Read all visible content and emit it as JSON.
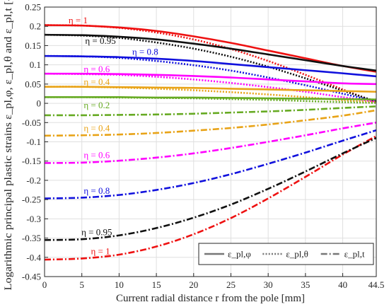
{
  "chart_data": {
    "type": "line",
    "xlabel": "Current radial distance r from the pole [mm]",
    "ylabel": "Logarithmic principal plastic strains ε_pl,φ, ε_pl,θ and ε_pl,t [-]",
    "xlim": [
      0,
      44.5
    ],
    "ylim": [
      -0.45,
      0.25
    ],
    "x_ticks": [
      "0",
      "5",
      "10",
      "15",
      "20",
      "25",
      "30",
      "35",
      "40",
      "44.5"
    ],
    "y_ticks": [
      "0.25",
      "0.2",
      "0.15",
      "0.1",
      "0.05",
      "0",
      "-0.05",
      "-0.1",
      "-0.15",
      "-0.2",
      "-0.25",
      "-0.3",
      "-0.35",
      "-0.4",
      "-0.45"
    ],
    "grid": true,
    "legend_position": "bottom-right",
    "legend": [
      {
        "label": "ε_pl,φ",
        "style": "solid"
      },
      {
        "label": "ε_pl,θ",
        "style": "dotted"
      },
      {
        "label": "ε_pl,t",
        "style": "dash-dot"
      }
    ],
    "x": [
      0,
      5,
      10,
      15,
      20,
      25,
      30,
      35,
      40,
      44.5
    ],
    "series": [
      {
        "eta": "1",
        "color": "#ee1111",
        "strain": "phi",
        "values": [
          0.203,
          0.202,
          0.197,
          0.188,
          0.174,
          0.157,
          0.137,
          0.117,
          0.097,
          0.082
        ]
      },
      {
        "eta": "1",
        "color": "#ee1111",
        "strain": "theta",
        "values": [
          0.203,
          0.202,
          0.196,
          0.184,
          0.166,
          0.141,
          0.11,
          0.074,
          0.036,
          0.003
        ]
      },
      {
        "eta": "1",
        "color": "#ee1111",
        "strain": "t",
        "values": [
          -0.406,
          -0.403,
          -0.393,
          -0.372,
          -0.34,
          -0.298,
          -0.247,
          -0.191,
          -0.133,
          -0.085
        ]
      },
      {
        "eta": "0.95",
        "color": "#111111",
        "strain": "phi",
        "values": [
          0.178,
          0.177,
          0.173,
          0.166,
          0.155,
          0.142,
          0.127,
          0.112,
          0.097,
          0.085
        ]
      },
      {
        "eta": "0.95",
        "color": "#111111",
        "strain": "theta",
        "values": [
          0.178,
          0.176,
          0.17,
          0.158,
          0.142,
          0.121,
          0.095,
          0.065,
          0.033,
          0.005
        ]
      },
      {
        "eta": "0.95",
        "color": "#111111",
        "strain": "t",
        "values": [
          -0.355,
          -0.353,
          -0.343,
          -0.324,
          -0.297,
          -0.263,
          -0.222,
          -0.177,
          -0.13,
          -0.09
        ]
      },
      {
        "eta": "0.8",
        "color": "#1111dd",
        "strain": "phi",
        "values": [
          0.123,
          0.122,
          0.12,
          0.116,
          0.11,
          0.102,
          0.094,
          0.086,
          0.078,
          0.07
        ]
      },
      {
        "eta": "0.8",
        "color": "#1111dd",
        "strain": "theta",
        "values": [
          0.123,
          0.122,
          0.118,
          0.11,
          0.099,
          0.085,
          0.067,
          0.047,
          0.025,
          0.005
        ]
      },
      {
        "eta": "0.8",
        "color": "#1111dd",
        "strain": "t",
        "values": [
          -0.247,
          -0.245,
          -0.238,
          -0.225,
          -0.207,
          -0.184,
          -0.157,
          -0.128,
          -0.097,
          -0.07
        ]
      },
      {
        "eta": "0.6",
        "color": "#ff00ff",
        "strain": "phi",
        "values": [
          0.077,
          0.077,
          0.076,
          0.074,
          0.071,
          0.067,
          0.062,
          0.057,
          0.052,
          0.05
        ]
      },
      {
        "eta": "0.6",
        "color": "#ff00ff",
        "strain": "theta",
        "values": [
          0.077,
          0.076,
          0.074,
          0.069,
          0.062,
          0.053,
          0.042,
          0.03,
          0.016,
          0.004
        ]
      },
      {
        "eta": "0.6",
        "color": "#ff00ff",
        "strain": "t",
        "values": [
          -0.155,
          -0.154,
          -0.149,
          -0.141,
          -0.13,
          -0.116,
          -0.1,
          -0.083,
          -0.065,
          -0.05
        ]
      },
      {
        "eta": "0.4",
        "color": "#e8a317",
        "strain": "phi",
        "values": [
          0.043,
          0.043,
          0.042,
          0.041,
          0.04,
          0.038,
          0.036,
          0.034,
          0.032,
          0.03
        ]
      },
      {
        "eta": "0.4",
        "color": "#e8a317",
        "strain": "theta",
        "values": [
          0.043,
          0.043,
          0.041,
          0.038,
          0.034,
          0.029,
          0.023,
          0.016,
          0.008,
          0.003
        ]
      },
      {
        "eta": "0.4",
        "color": "#e8a317",
        "strain": "t",
        "values": [
          -0.084,
          -0.083,
          -0.081,
          -0.077,
          -0.071,
          -0.064,
          -0.055,
          -0.044,
          -0.032,
          -0.018
        ]
      },
      {
        "eta": "0.2",
        "color": "#66aa22",
        "strain": "phi",
        "values": [
          0.016,
          0.016,
          0.016,
          0.015,
          0.015,
          0.014,
          0.013,
          0.012,
          0.011,
          0.01
        ]
      },
      {
        "eta": "0.2",
        "color": "#66aa22",
        "strain": "theta",
        "values": [
          0.016,
          0.016,
          0.015,
          0.014,
          0.013,
          0.011,
          0.009,
          0.006,
          0.003,
          0.001
        ]
      },
      {
        "eta": "0.2",
        "color": "#66aa22",
        "strain": "t",
        "values": [
          -0.031,
          -0.031,
          -0.03,
          -0.029,
          -0.027,
          -0.024,
          -0.021,
          -0.017,
          -0.012,
          -0.008
        ]
      }
    ],
    "annotations": [
      {
        "text": "η = 1",
        "color": "#ee1111",
        "x": 4.5,
        "y": 0.215
      },
      {
        "text": "η = 0.95",
        "color": "#111111",
        "x": 7.5,
        "y": 0.162
      },
      {
        "text": "η = 0.8",
        "color": "#1111dd",
        "x": 13.5,
        "y": 0.133
      },
      {
        "text": "η = 0.6",
        "color": "#ff00ff",
        "x": 7.0,
        "y": 0.088
      },
      {
        "text": "η = 0.4",
        "color": "#e8a317",
        "x": 7.0,
        "y": 0.055
      },
      {
        "text": "η = 0.2",
        "color": "#66aa22",
        "x": 7.0,
        "y": -0.005
      },
      {
        "text": "η = 0.4",
        "color": "#e8a317",
        "x": 7.0,
        "y": -0.065
      },
      {
        "text": "η = 0.6",
        "color": "#ff00ff",
        "x": 7.0,
        "y": -0.135
      },
      {
        "text": "η = 0.8",
        "color": "#1111dd",
        "x": 7.0,
        "y": -0.228
      },
      {
        "text": "η = 0.95",
        "color": "#111111",
        "x": 7.0,
        "y": -0.335
      },
      {
        "text": "η = 1",
        "color": "#ee1111",
        "x": 7.5,
        "y": -0.385
      }
    ]
  }
}
